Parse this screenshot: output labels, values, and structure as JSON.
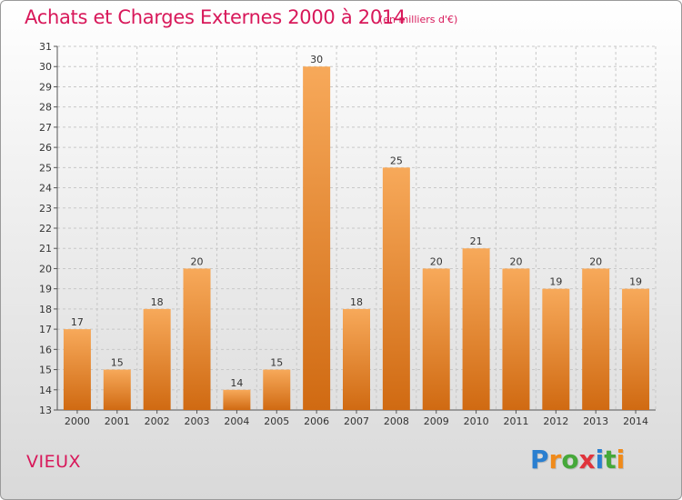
{
  "header": {
    "title": "Achats et Charges Externes 2000 à 2014",
    "unit_note": "(en milliers d'€)"
  },
  "footer": {
    "commune": "VIEUX",
    "logo_letters": [
      "P",
      "r",
      "o",
      "x",
      "i",
      "t",
      "i"
    ],
    "logo_colors": [
      "#2a7fd0",
      "#f08a1a",
      "#46a83a",
      "#e0343c",
      "#2a7fd0",
      "#46a83a",
      "#f08a1a"
    ]
  },
  "colors": {
    "bar_light": "#f7a95a",
    "bar_dark": "#d06a12",
    "grid": "#c8c8c8",
    "axis": "#555555",
    "accent": "#d8185a"
  },
  "chart_data": {
    "type": "bar",
    "title": "Achats et Charges Externes 2000 à 2014",
    "subtitle": "(en milliers d'€)",
    "xlabel": "",
    "ylabel": "",
    "categories": [
      "2000",
      "2001",
      "2002",
      "2003",
      "2004",
      "2005",
      "2006",
      "2007",
      "2008",
      "2009",
      "2010",
      "2011",
      "2012",
      "2013",
      "2014"
    ],
    "values": [
      17,
      15,
      18,
      20,
      14,
      15,
      30,
      18,
      25,
      20,
      21,
      20,
      19,
      20,
      19
    ],
    "ylim": [
      13,
      31
    ],
    "yticks": [
      13,
      14,
      15,
      16,
      17,
      18,
      19,
      20,
      21,
      22,
      23,
      24,
      25,
      26,
      27,
      28,
      29,
      30,
      31
    ],
    "grid": true,
    "legend": "none"
  }
}
